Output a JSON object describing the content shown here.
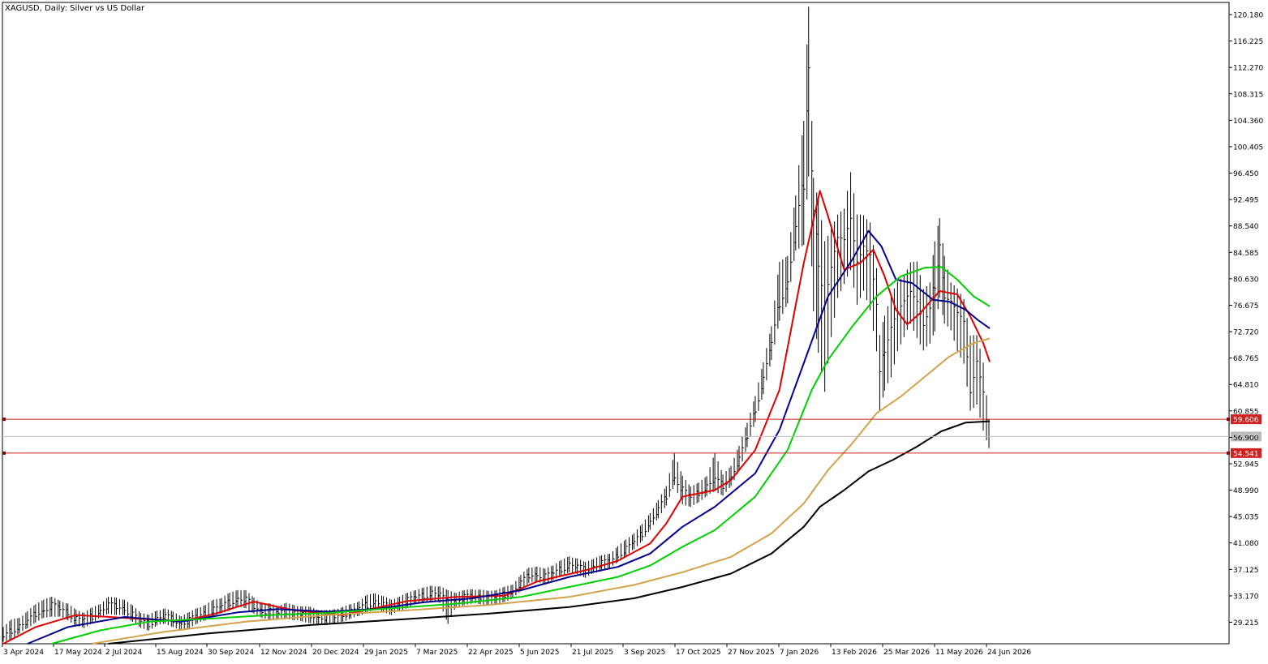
{
  "chart_data": {
    "type": "candlestick",
    "title": "XAGUSD, Daily:  Silver vs US Dollar",
    "symbol": "XAGUSD",
    "timeframe": "Daily",
    "ylim": [
      26.0,
      122.0
    ],
    "y_ticks": [
      "120.180",
      "116.225",
      "112.270",
      "108.315",
      "104.360",
      "100.405",
      "96.450",
      "92.495",
      "88.540",
      "84.585",
      "80.630",
      "76.675",
      "72.720",
      "68.765",
      "64.810",
      "60.855",
      "56.900",
      "52.945",
      "48.990",
      "45.035",
      "41.080",
      "37.125",
      "33.170",
      "29.215"
    ],
    "x_ticks": [
      "3 Apr 2024",
      "17 May 2024",
      "2 Jul 2024",
      "15 Aug 2024",
      "30 Sep 2024",
      "12 Nov 2024",
      "20 Dec 2024",
      "29 Jan 2025",
      "7 Mar 2025",
      "22 Apr 2025",
      "5 Jun 2025",
      "21 Jul 2025",
      "3 Sep 2025",
      "17 Oct 2025",
      "27 Nov 2025",
      "7 Jan 2026",
      "13 Feb 2026",
      "25 Mar 2026",
      "11 May 2026",
      "24 Jun 2026"
    ],
    "price_series": [
      [
        0,
        27.0,
        28.5,
        26.3
      ],
      [
        10,
        28.0,
        29.5,
        26.8
      ],
      [
        20,
        28.6,
        29.8,
        27.6
      ],
      [
        30,
        29.2,
        30.8,
        28.4
      ],
      [
        40,
        30.5,
        31.8,
        29.3
      ],
      [
        50,
        31.0,
        32.6,
        29.9
      ],
      [
        60,
        31.7,
        32.9,
        30.2
      ],
      [
        70,
        31.3,
        32.4,
        30.1
      ],
      [
        80,
        30.7,
        31.9,
        29.6
      ],
      [
        90,
        29.7,
        31.0,
        28.8
      ],
      [
        100,
        29.6,
        30.6,
        28.4
      ],
      [
        110,
        30.1,
        31.3,
        29.2
      ],
      [
        120,
        30.9,
        31.9,
        30.0
      ],
      [
        130,
        31.7,
        32.9,
        30.6
      ],
      [
        140,
        31.6,
        32.8,
        30.4
      ],
      [
        150,
        31.2,
        32.5,
        30.3
      ],
      [
        160,
        30.3,
        31.6,
        29.4
      ],
      [
        170,
        29.4,
        30.6,
        28.4
      ],
      [
        180,
        29.0,
        30.2,
        28.1
      ],
      [
        190,
        29.7,
        30.9,
        28.8
      ],
      [
        200,
        30.1,
        31.2,
        29.1
      ],
      [
        210,
        29.6,
        30.7,
        28.6
      ],
      [
        220,
        29.0,
        30.1,
        28.0
      ],
      [
        230,
        29.5,
        30.6,
        28.5
      ],
      [
        240,
        30.1,
        31.3,
        29.1
      ],
      [
        250,
        30.6,
        31.7,
        29.6
      ],
      [
        260,
        31.1,
        32.5,
        30.2
      ],
      [
        270,
        31.6,
        32.8,
        30.6
      ],
      [
        280,
        32.2,
        33.5,
        31.1
      ],
      [
        290,
        32.7,
        34.0,
        31.6
      ],
      [
        300,
        32.6,
        33.9,
        31.4
      ],
      [
        310,
        31.6,
        32.8,
        30.6
      ],
      [
        320,
        30.9,
        32.0,
        29.9
      ],
      [
        330,
        30.8,
        31.9,
        29.8
      ],
      [
        340,
        30.6,
        31.6,
        29.6
      ],
      [
        350,
        30.9,
        32.0,
        29.9
      ],
      [
        360,
        30.6,
        31.7,
        29.6
      ],
      [
        370,
        30.4,
        31.5,
        29.4
      ],
      [
        380,
        30.3,
        31.4,
        29.2
      ],
      [
        390,
        30.0,
        31.0,
        28.9
      ],
      [
        400,
        29.9,
        30.9,
        28.9
      ],
      [
        410,
        30.1,
        31.1,
        29.1
      ],
      [
        420,
        30.4,
        31.4,
        29.4
      ],
      [
        430,
        30.8,
        31.8,
        29.9
      ],
      [
        440,
        31.3,
        32.3,
        30.2
      ],
      [
        450,
        31.8,
        33.2,
        30.8
      ],
      [
        460,
        32.3,
        33.5,
        31.3
      ],
      [
        470,
        31.8,
        33.0,
        30.9
      ],
      [
        480,
        31.4,
        32.5,
        30.4
      ],
      [
        490,
        32.0,
        33.0,
        31.0
      ],
      [
        500,
        32.5,
        33.5,
        31.5
      ],
      [
        510,
        33.0,
        34.0,
        32.0
      ],
      [
        520,
        33.2,
        34.3,
        32.2
      ],
      [
        530,
        33.6,
        34.6,
        32.5
      ],
      [
        540,
        33.3,
        34.5,
        32.2
      ],
      [
        550,
        32.0,
        33.9,
        29.1
      ],
      [
        560,
        32.6,
        33.6,
        31.6
      ],
      [
        570,
        32.9,
        33.9,
        31.9
      ],
      [
        580,
        33.1,
        34.1,
        32.1
      ],
      [
        590,
        33.0,
        34.0,
        32.0
      ],
      [
        600,
        32.8,
        33.8,
        31.8
      ],
      [
        610,
        33.0,
        34.0,
        32.0
      ],
      [
        620,
        33.4,
        34.4,
        32.4
      ],
      [
        630,
        33.8,
        34.8,
        32.8
      ],
      [
        640,
        35.0,
        36.2,
        34.0
      ],
      [
        650,
        36.2,
        37.3,
        35.2
      ],
      [
        660,
        36.4,
        37.5,
        35.4
      ],
      [
        670,
        36.0,
        37.1,
        35.0
      ],
      [
        680,
        36.6,
        37.7,
        35.6
      ],
      [
        690,
        37.2,
        38.4,
        36.2
      ],
      [
        700,
        37.8,
        39.0,
        36.8
      ],
      [
        710,
        37.5,
        38.7,
        36.5
      ],
      [
        720,
        37.0,
        38.1,
        36.0
      ],
      [
        730,
        37.6,
        38.7,
        36.6
      ],
      [
        740,
        38.0,
        39.1,
        37.0
      ],
      [
        750,
        38.3,
        39.4,
        37.3
      ],
      [
        760,
        39.3,
        40.5,
        38.3
      ],
      [
        770,
        40.2,
        41.5,
        39.2
      ],
      [
        780,
        41.2,
        42.5,
        40.2
      ],
      [
        790,
        42.5,
        43.8,
        41.5
      ],
      [
        800,
        44.2,
        45.5,
        43.1
      ],
      [
        810,
        46.0,
        47.4,
        44.9
      ],
      [
        820,
        48.0,
        49.5,
        46.8
      ],
      [
        830,
        51.0,
        54.5,
        49.8
      ],
      [
        840,
        49.0,
        51.0,
        47.0
      ],
      [
        850,
        48.0,
        49.5,
        46.5
      ],
      [
        860,
        48.6,
        50.0,
        47.3
      ],
      [
        870,
        49.5,
        51.0,
        48.2
      ],
      [
        880,
        50.5,
        54.5,
        48.9
      ],
      [
        890,
        49.7,
        51.2,
        48.3
      ],
      [
        900,
        51.0,
        52.6,
        49.6
      ],
      [
        910,
        53.5,
        55.5,
        52.0
      ],
      [
        920,
        57.0,
        59.0,
        55.5
      ],
      [
        930,
        61.0,
        63.0,
        59.3
      ],
      [
        940,
        65.5,
        68.0,
        63.5
      ],
      [
        950,
        71.0,
        73.5,
        68.5
      ],
      [
        960,
        77.0,
        83.0,
        74.5
      ],
      [
        970,
        80.0,
        84.0,
        77.0
      ],
      [
        980,
        88.0,
        93.0,
        85.0
      ],
      [
        990,
        95.0,
        104.0,
        86.0
      ],
      [
        996,
        112.0,
        121.3,
        96.0
      ],
      [
        1002,
        90.0,
        95.5,
        76.0
      ],
      [
        1008,
        84.0,
        92.0,
        70.0
      ],
      [
        1016,
        78.0,
        86.0,
        64.0
      ],
      [
        1024,
        82.0,
        88.0,
        72.0
      ],
      [
        1032,
        86.0,
        90.0,
        78.0
      ],
      [
        1040,
        86.0,
        91.0,
        80.0
      ],
      [
        1048,
        90.0,
        96.5,
        82.0
      ],
      [
        1056,
        84.0,
        90.0,
        77.0
      ],
      [
        1064,
        86.0,
        90.0,
        79.0
      ],
      [
        1072,
        84.0,
        89.0,
        76.0
      ],
      [
        1080,
        76.0,
        82.0,
        70.0
      ],
      [
        1084,
        66.0,
        72.0,
        61.0
      ],
      [
        1090,
        70.0,
        75.0,
        64.0
      ],
      [
        1098,
        73.0,
        78.0,
        66.0
      ],
      [
        1106,
        75.0,
        80.0,
        70.0
      ],
      [
        1114,
        77.0,
        81.0,
        72.0
      ],
      [
        1122,
        79.0,
        83.0,
        74.0
      ],
      [
        1130,
        78.0,
        83.0,
        72.0
      ],
      [
        1138,
        74.0,
        79.0,
        70.0
      ],
      [
        1146,
        76.0,
        80.0,
        71.0
      ],
      [
        1152,
        80.0,
        86.0,
        73.0
      ],
      [
        1158,
        85.0,
        89.5,
        78.0
      ],
      [
        1164,
        78.0,
        84.0,
        74.0
      ],
      [
        1172,
        77.0,
        80.0,
        73.0
      ],
      [
        1180,
        75.0,
        79.0,
        70.0
      ],
      [
        1188,
        74.0,
        77.5,
        68.0
      ],
      [
        1196,
        64.0,
        72.0,
        61.0
      ],
      [
        1204,
        69.0,
        72.0,
        62.0
      ],
      [
        1212,
        64.0,
        68.0,
        58.0
      ],
      [
        1219,
        56.2,
        59.6,
        55.3
      ]
    ],
    "ma_series": [
      {
        "color": "#e00000",
        "points": [
          [
            0,
            26.0
          ],
          [
            40,
            28.5
          ],
          [
            90,
            30.3
          ],
          [
            160,
            29.8
          ],
          [
            220,
            29.4
          ],
          [
            260,
            30.4
          ],
          [
            310,
            32.3
          ],
          [
            360,
            31.0
          ],
          [
            420,
            30.3
          ],
          [
            500,
            32.4
          ],
          [
            560,
            33.0
          ],
          [
            620,
            33.2
          ],
          [
            660,
            35.3
          ],
          [
            720,
            37.0
          ],
          [
            760,
            38.4
          ],
          [
            800,
            41.0
          ],
          [
            820,
            44.0
          ],
          [
            840,
            48.0
          ],
          [
            880,
            49.0
          ],
          [
            900,
            50.5
          ],
          [
            930,
            55.0
          ],
          [
            960,
            64.0
          ],
          [
            990,
            83.0
          ],
          [
            1010,
            93.8
          ],
          [
            1020,
            90.0
          ],
          [
            1040,
            82.0
          ],
          [
            1060,
            83.0
          ],
          [
            1076,
            85.0
          ],
          [
            1090,
            81.0
          ],
          [
            1104,
            76.0
          ],
          [
            1118,
            73.8
          ],
          [
            1134,
            75.5
          ],
          [
            1158,
            78.8
          ],
          [
            1180,
            78.3
          ],
          [
            1196,
            75.0
          ],
          [
            1212,
            71.0
          ],
          [
            1220,
            68.2
          ]
        ]
      },
      {
        "color": "#00008b",
        "points": [
          [
            30,
            26.0
          ],
          [
            80,
            28.5
          ],
          [
            150,
            30.0
          ],
          [
            220,
            29.3
          ],
          [
            290,
            30.7
          ],
          [
            340,
            31.2
          ],
          [
            400,
            30.8
          ],
          [
            460,
            31.2
          ],
          [
            520,
            32.2
          ],
          [
            580,
            32.8
          ],
          [
            640,
            34.0
          ],
          [
            700,
            36.0
          ],
          [
            760,
            37.5
          ],
          [
            800,
            39.5
          ],
          [
            840,
            43.5
          ],
          [
            880,
            46.5
          ],
          [
            930,
            51.5
          ],
          [
            960,
            58.0
          ],
          [
            990,
            68.0
          ],
          [
            1020,
            78.0
          ],
          [
            1050,
            83.5
          ],
          [
            1070,
            87.8
          ],
          [
            1086,
            85.5
          ],
          [
            1104,
            80.5
          ],
          [
            1124,
            80.0
          ],
          [
            1150,
            77.5
          ],
          [
            1170,
            77.2
          ],
          [
            1190,
            76.0
          ],
          [
            1205,
            74.5
          ],
          [
            1220,
            73.2
          ]
        ]
      },
      {
        "color": "#00d000",
        "points": [
          [
            60,
            26.0
          ],
          [
            120,
            28.0
          ],
          [
            180,
            29.3
          ],
          [
            260,
            29.8
          ],
          [
            330,
            30.3
          ],
          [
            400,
            30.6
          ],
          [
            480,
            31.3
          ],
          [
            560,
            32.0
          ],
          [
            640,
            33.0
          ],
          [
            700,
            34.5
          ],
          [
            760,
            36.0
          ],
          [
            800,
            37.7
          ],
          [
            840,
            40.5
          ],
          [
            880,
            43.0
          ],
          [
            930,
            48.0
          ],
          [
            970,
            55.0
          ],
          [
            1000,
            64.0
          ],
          [
            1020,
            68.5
          ],
          [
            1050,
            73.5
          ],
          [
            1080,
            78.0
          ],
          [
            1110,
            81.0
          ],
          [
            1140,
            82.3
          ],
          [
            1160,
            82.4
          ],
          [
            1180,
            80.5
          ],
          [
            1200,
            78.0
          ],
          [
            1220,
            76.5
          ]
        ]
      },
      {
        "color": "#d4a24a",
        "points": [
          [
            110,
            26.0
          ],
          [
            200,
            27.8
          ],
          [
            300,
            29.3
          ],
          [
            400,
            30.3
          ],
          [
            500,
            31.0
          ],
          [
            600,
            31.8
          ],
          [
            700,
            33.0
          ],
          [
            780,
            34.8
          ],
          [
            840,
            36.7
          ],
          [
            900,
            39.0
          ],
          [
            950,
            42.5
          ],
          [
            990,
            47.0
          ],
          [
            1020,
            52.0
          ],
          [
            1050,
            56.0
          ],
          [
            1080,
            60.5
          ],
          [
            1110,
            63.0
          ],
          [
            1140,
            66.0
          ],
          [
            1170,
            69.0
          ],
          [
            1200,
            71.0
          ],
          [
            1220,
            71.7
          ]
        ]
      },
      {
        "color": "#000000",
        "points": [
          [
            130,
            26.0
          ],
          [
            250,
            27.5
          ],
          [
            380,
            28.8
          ],
          [
            500,
            29.7
          ],
          [
            600,
            30.5
          ],
          [
            700,
            31.5
          ],
          [
            780,
            32.8
          ],
          [
            840,
            34.5
          ],
          [
            900,
            36.5
          ],
          [
            950,
            39.5
          ],
          [
            990,
            43.5
          ],
          [
            1010,
            46.5
          ],
          [
            1040,
            49.0
          ],
          [
            1070,
            51.8
          ],
          [
            1100,
            53.5
          ],
          [
            1130,
            55.5
          ],
          [
            1160,
            57.8
          ],
          [
            1190,
            59.1
          ],
          [
            1220,
            59.3
          ]
        ]
      }
    ],
    "price_lines": [
      {
        "label": "59.606",
        "value": 59.606,
        "color": "#d02020",
        "style": "solid"
      },
      {
        "label": "57.025",
        "value": 57.025,
        "color": "#bbbbbb",
        "style": "solid"
      },
      {
        "label": "54.541",
        "value": 54.541,
        "color": "#d02020",
        "style": "solid"
      }
    ]
  }
}
